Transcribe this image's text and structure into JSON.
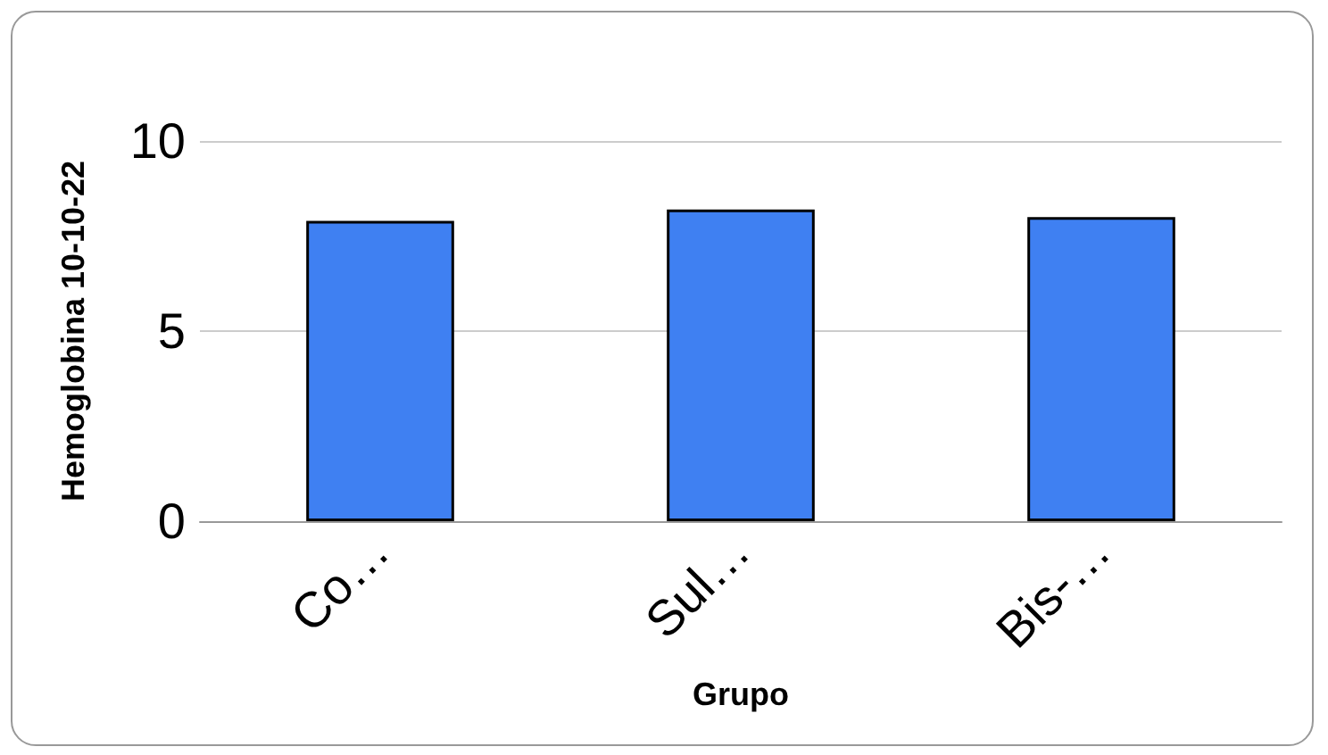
{
  "chart_data": {
    "type": "bar",
    "xlabel": "Grupo",
    "ylabel": "Hemoglobina 10-10-22",
    "categories": [
      "Co…",
      "Sul…",
      "Bis-…"
    ],
    "values": [
      7.9,
      8.2,
      8.0
    ],
    "color": "#3f80f2",
    "ylim": [
      0,
      10
    ],
    "yticks": [
      0,
      5,
      10
    ],
    "grid": "y"
  }
}
